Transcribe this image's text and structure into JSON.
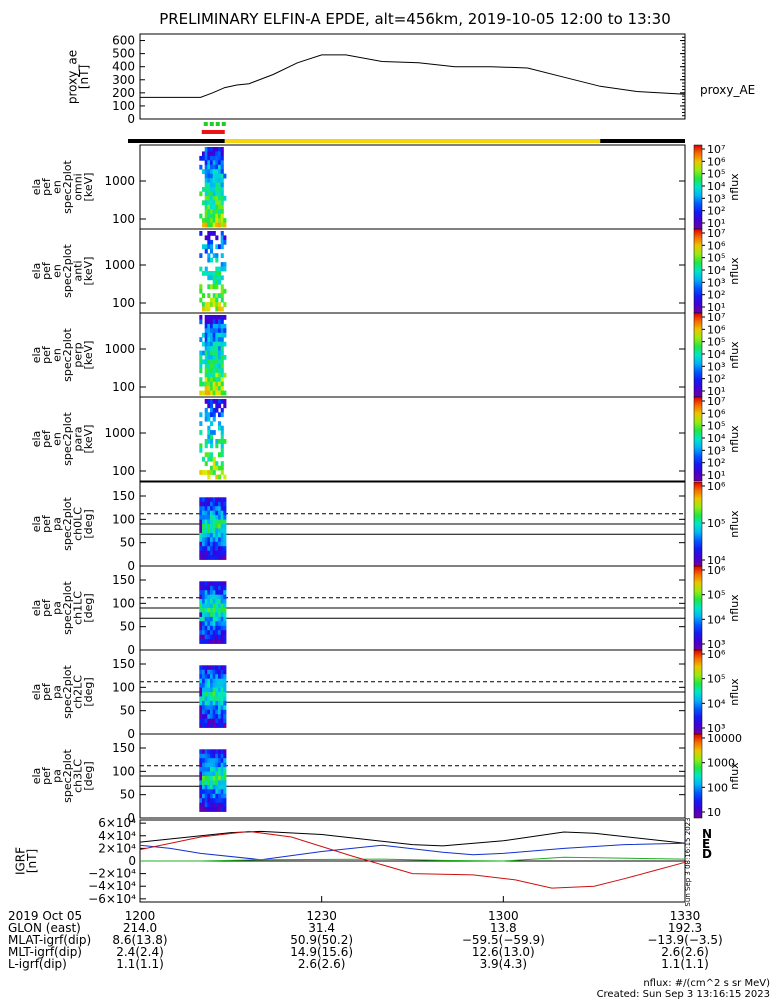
{
  "title": "PRELIMINARY ELFIN-A EPDE, alt=456km, 2019-10-05 12:00 to 13:30",
  "colors": {
    "ae_line": "#000000",
    "sci_green": "#22cc22",
    "sci_red": "#ee1111",
    "bar_black": "#000000",
    "bar_yellow": "#f5d60a",
    "grf_n": "#000000",
    "grf_e": "#1030d0",
    "grf_d": "#20b020",
    "grf_r": "#cc1010"
  },
  "ae_panel": {
    "ylabel": [
      "proxy_ae",
      "[nT]"
    ],
    "yticks": [
      "0",
      "100",
      "200",
      "300",
      "400",
      "500",
      "600"
    ],
    "legend": "proxy_AE"
  },
  "panels": [
    {
      "kind": "energy",
      "ylabel": [
        "ela",
        "pef",
        "en",
        "spec2plot",
        "omni",
        "[keV]"
      ],
      "yticks": [
        "1000",
        "100"
      ],
      "cbar": {
        "ticks": [
          "10⁷",
          "10⁶",
          "10⁵",
          "10⁴",
          "10³",
          "10²",
          "10¹"
        ],
        "label": "nflux"
      }
    },
    {
      "kind": "energy",
      "ylabel": [
        "ela",
        "pef",
        "en",
        "spec2plot",
        "anti",
        "[keV]"
      ],
      "yticks": [
        "1000",
        "100"
      ],
      "cbar": {
        "ticks": [
          "10⁷",
          "10⁶",
          "10⁵",
          "10⁴",
          "10³",
          "10²",
          "10¹"
        ],
        "label": "nflux"
      }
    },
    {
      "kind": "energy",
      "ylabel": [
        "ela",
        "pef",
        "en",
        "spec2plot",
        "perp",
        "[keV]"
      ],
      "yticks": [
        "1000",
        "100"
      ],
      "cbar": {
        "ticks": [
          "10⁷",
          "10⁶",
          "10⁵",
          "10⁴",
          "10³",
          "10²",
          "10¹"
        ],
        "label": "nflux"
      }
    },
    {
      "kind": "energy",
      "ylabel": [
        "ela",
        "pef",
        "en",
        "spec2plot",
        "para",
        "[keV]"
      ],
      "yticks": [
        "1000",
        "100"
      ],
      "cbar": {
        "ticks": [
          "10⁷",
          "10⁶",
          "10⁵",
          "10⁴",
          "10³",
          "10²",
          "10¹"
        ],
        "label": "nflux"
      }
    },
    {
      "kind": "pa",
      "ylabel": [
        "ela",
        "pef",
        "pa",
        "spec2plot",
        "ch0LC",
        "[deg]"
      ],
      "yticks": [
        "150",
        "100",
        "50",
        "0"
      ],
      "cbar": {
        "ticks": [
          "10⁶",
          "10⁵",
          "10⁴"
        ],
        "label": "nflux"
      }
    },
    {
      "kind": "pa",
      "ylabel": [
        "ela",
        "pef",
        "pa",
        "spec2plot",
        "ch1LC",
        "[deg]"
      ],
      "yticks": [
        "150",
        "100",
        "50",
        "0"
      ],
      "cbar": {
        "ticks": [
          "10⁶",
          "10⁵",
          "10⁴",
          "10³"
        ],
        "label": "nflux"
      }
    },
    {
      "kind": "pa",
      "ylabel": [
        "ela",
        "pef",
        "pa",
        "spec2plot",
        "ch2LC",
        "[deg]"
      ],
      "yticks": [
        "150",
        "100",
        "50",
        "0"
      ],
      "cbar": {
        "ticks": [
          "10⁶",
          "10⁵",
          "10⁴",
          "10³"
        ],
        "label": "nflux"
      }
    },
    {
      "kind": "pa",
      "ylabel": [
        "ela",
        "pef",
        "pa",
        "spec2plot",
        "ch3LC",
        "[deg]"
      ],
      "yticks": [
        "150",
        "100",
        "50",
        "0"
      ],
      "cbar": {
        "ticks": [
          "10000",
          "1000",
          "100",
          "10"
        ],
        "label": "nflux"
      }
    }
  ],
  "grf_panel": {
    "ylabel": [
      "IGRF",
      "[nT]"
    ],
    "yticks": [
      "6×10⁴",
      "4×10⁴",
      "2×10⁴",
      "0",
      "−2×10⁴",
      "−4×10⁴",
      "−6×10⁴"
    ],
    "legend": [
      "N",
      "E",
      "D"
    ],
    "side_text": "Sun Sep  3 08:16:15 2023"
  },
  "footer": {
    "rows": [
      {
        "label": "2019 Oct 05",
        "values": [
          "1200",
          "1230",
          "1300",
          "1330"
        ]
      },
      {
        "label": "GLON (east)",
        "values": [
          "214.0",
          "31.4",
          "13.8",
          "192.3"
        ]
      },
      {
        "label": "MLAT-igrf(dip)",
        "values": [
          "8.6(13.8)",
          "50.9(50.2)",
          "−59.5(−59.9)",
          "−13.9(−3.5)"
        ]
      },
      {
        "label": "MLT-igrf(dip)",
        "values": [
          "2.4(2.4)",
          "14.9(15.6)",
          "12.6(13.0)",
          "2.6(2.6)"
        ]
      },
      {
        "label": "L-igrf(dip)",
        "values": [
          "1.1(1.1)",
          "2.6(2.6)",
          "3.9(4.3)",
          "1.1(1.1)"
        ]
      }
    ],
    "note1": "nflux: #/(cm^2 s sr MeV)",
    "note2": "Created: Sun Sep  3 13:16:15 2023"
  },
  "chart_data": {
    "type": "line",
    "title": "PRELIMINARY ELFIN-A EPDE, alt=456km, 2019-10-05 12:00 to 13:30",
    "x_unit_minutes_from": "12:00",
    "x_ticks": [
      "1200",
      "1230",
      "1300",
      "1330"
    ],
    "proxy_ae": {
      "ylim": [
        0,
        650
      ],
      "x": [
        0,
        5,
        10,
        12,
        14,
        16,
        18,
        22,
        26,
        30,
        34,
        40,
        46,
        52,
        58,
        64,
        70,
        76,
        82,
        90
      ],
      "values": [
        165,
        165,
        165,
        200,
        240,
        260,
        270,
        340,
        430,
        490,
        490,
        440,
        430,
        400,
        400,
        390,
        320,
        250,
        210,
        190
      ]
    },
    "science_zone_min": [
      10.2,
      14.0
    ],
    "igrf": {
      "ylim": [
        -65000,
        65000
      ],
      "series": [
        {
          "name": "N",
          "x": [
            0,
            15,
            20,
            30,
            45,
            50,
            60,
            70,
            75,
            90
          ],
          "values": [
            30000,
            45000,
            47000,
            42000,
            26000,
            24000,
            32000,
            46000,
            44000,
            28000
          ]
        },
        {
          "name": "E",
          "x": [
            0,
            5,
            10,
            20,
            30,
            40,
            50,
            55,
            60,
            70,
            80,
            90
          ],
          "values": [
            25000,
            20000,
            12000,
            2000,
            15000,
            25000,
            14000,
            10000,
            12000,
            20000,
            26000,
            28000
          ]
        },
        {
          "name": "D",
          "x": [
            0,
            10,
            20,
            40,
            50,
            60,
            70,
            90
          ],
          "values": [
            0,
            0,
            2000,
            3000,
            1000,
            0,
            6000,
            3000
          ]
        },
        {
          "name": "R",
          "x": [
            0,
            10,
            18,
            25,
            35,
            45,
            55,
            62,
            68,
            75,
            80,
            85,
            90
          ],
          "values": [
            18000,
            38000,
            47000,
            38000,
            8000,
            -20000,
            -22000,
            -30000,
            -43000,
            -40000,
            -28000,
            -15000,
            -2000
          ]
        }
      ]
    }
  }
}
